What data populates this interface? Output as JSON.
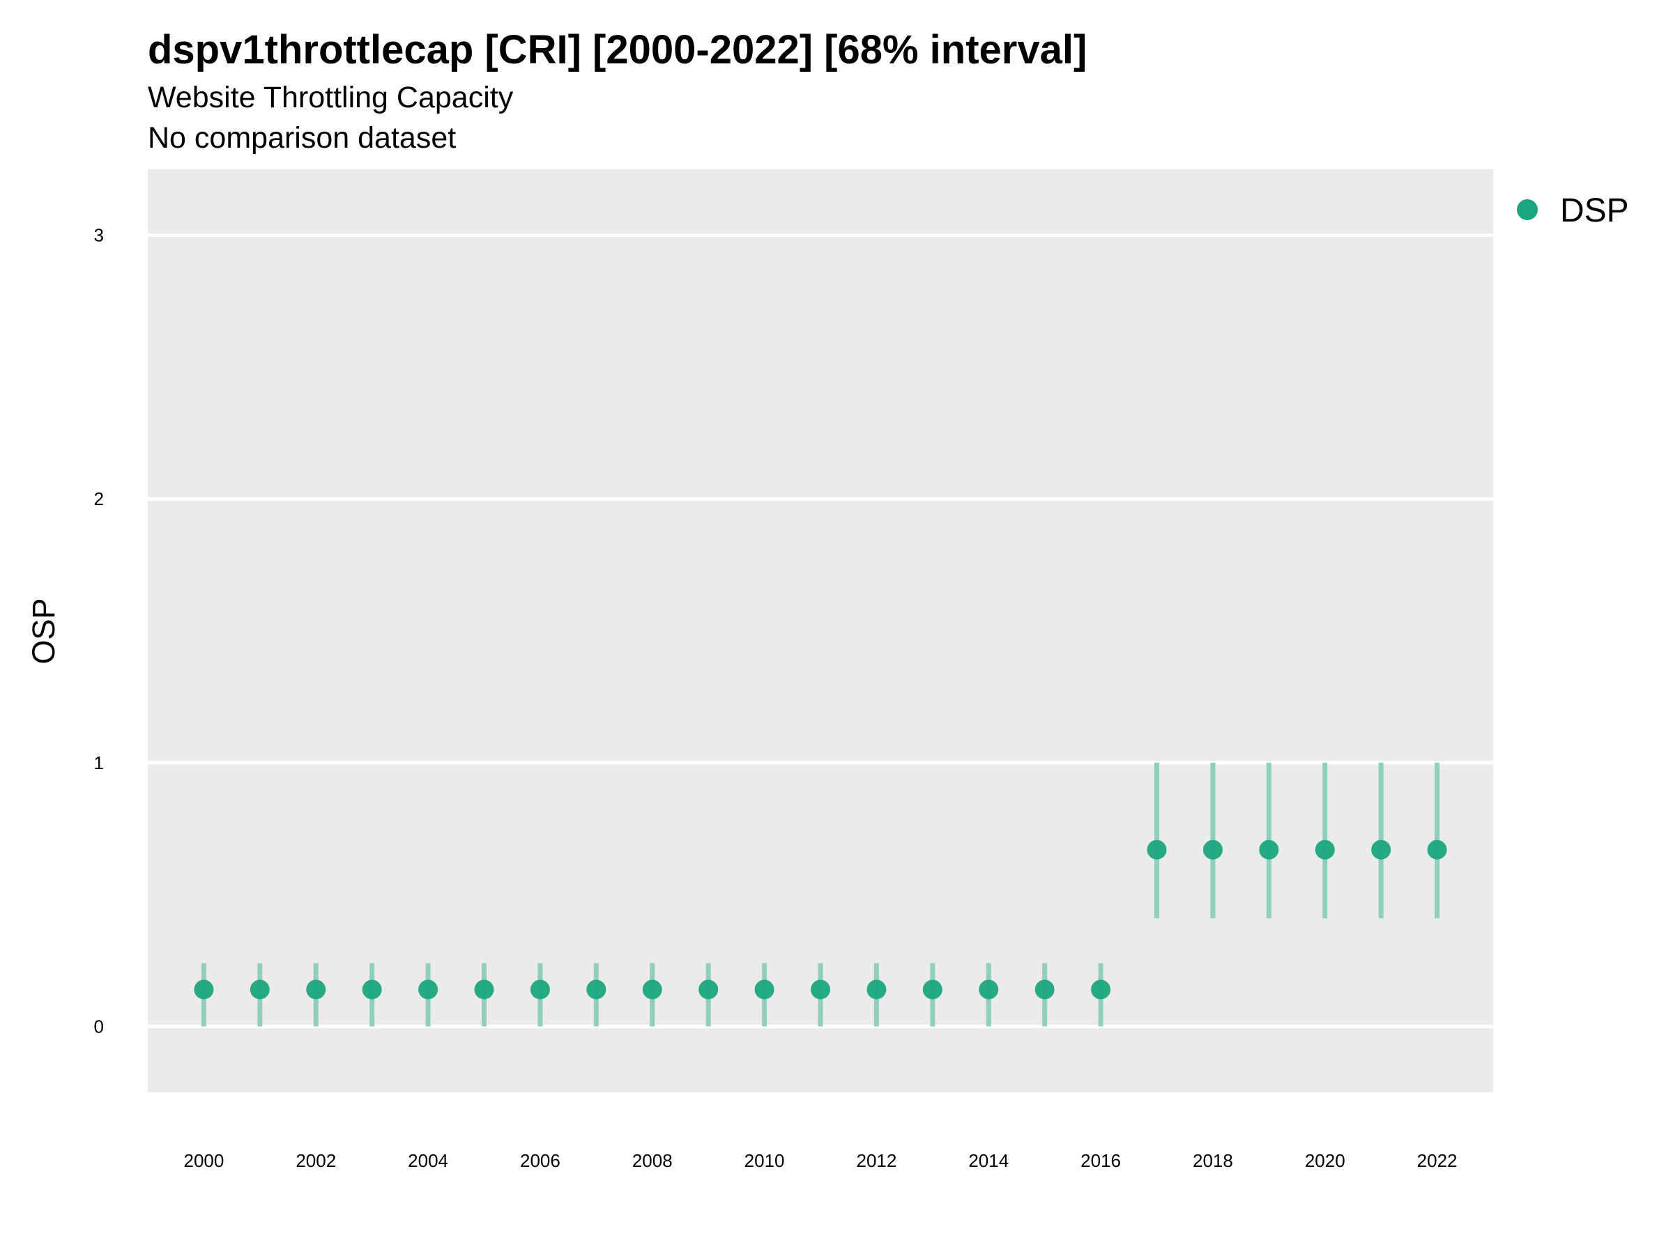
{
  "chart_data": {
    "type": "scatter",
    "title": "dspv1throttlecap [CRI] [2000-2022] [68% interval]",
    "subtitle": "Website Throttling Capacity",
    "caption": "No comparison dataset",
    "xlabel": "",
    "ylabel": "OSP",
    "xlim": [
      1999,
      2023
    ],
    "ylim": [
      -0.25,
      3.25
    ],
    "x_ticks": [
      "2000",
      "2002",
      "2004",
      "2006",
      "2008",
      "2010",
      "2012",
      "2014",
      "2016",
      "2018",
      "2020",
      "2022"
    ],
    "y_ticks": [
      "0",
      "1",
      "2",
      "3"
    ],
    "grid": true,
    "legend_position": "right",
    "colors": {
      "point": "#1aa67e",
      "interval": "#8fcfbc",
      "panel": "#ebebeb",
      "grid": "#ffffff"
    },
    "series": [
      {
        "name": "DSP",
        "x": [
          2000,
          2001,
          2002,
          2003,
          2004,
          2005,
          2006,
          2007,
          2008,
          2009,
          2010,
          2011,
          2012,
          2013,
          2014,
          2015,
          2016,
          2017,
          2018,
          2019,
          2020,
          2021,
          2022
        ],
        "y": [
          0.14,
          0.14,
          0.14,
          0.14,
          0.14,
          0.14,
          0.14,
          0.14,
          0.14,
          0.14,
          0.14,
          0.14,
          0.14,
          0.14,
          0.14,
          0.14,
          0.14,
          0.67,
          0.67,
          0.67,
          0.67,
          0.67,
          0.67
        ],
        "lower": [
          0,
          0,
          0,
          0,
          0,
          0,
          0,
          0,
          0,
          0,
          0,
          0,
          0,
          0,
          0,
          0,
          0,
          0.41,
          0.41,
          0.41,
          0.41,
          0.41,
          0.41
        ],
        "upper": [
          0.24,
          0.24,
          0.24,
          0.24,
          0.24,
          0.24,
          0.24,
          0.24,
          0.24,
          0.24,
          0.24,
          0.24,
          0.24,
          0.24,
          0.24,
          0.24,
          0.24,
          1.0,
          1.0,
          1.0,
          1.0,
          1.0,
          1.0
        ]
      }
    ]
  }
}
